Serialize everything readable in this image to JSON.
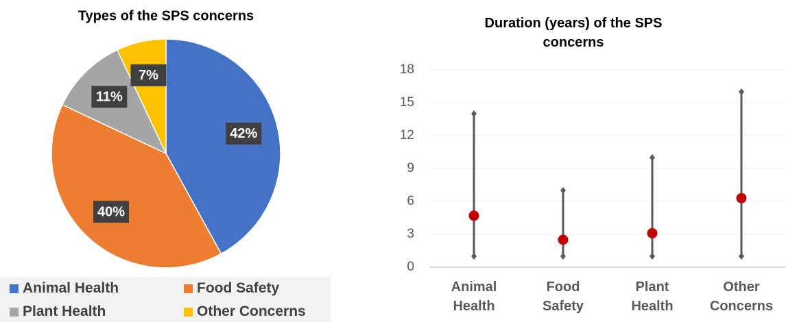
{
  "chart_data": [
    {
      "type": "pie",
      "title": "Types of the SPS concerns",
      "categories": [
        "Animal Health",
        "Food Safety",
        "Plant Health",
        "Other Concerns"
      ],
      "values": [
        42,
        40,
        11,
        7
      ],
      "value_labels": [
        "42%",
        "40%",
        "11%",
        "7%"
      ],
      "colors": [
        "#4472c4",
        "#ed7d31",
        "#a5a5a5",
        "#ffc000"
      ]
    },
    {
      "type": "range",
      "title": "Duration (years) of the SPS concerns",
      "categories": [
        "Animal Health",
        "Food Safety",
        "Plant Health",
        "Other Concerns"
      ],
      "min": [
        1,
        1,
        1,
        1
      ],
      "max": [
        14,
        7,
        10,
        16
      ],
      "mean": [
        4.7,
        2.5,
        3.1,
        6.3
      ],
      "line_color": "#595959",
      "mean_color": "#c00000",
      "ylim": [
        0,
        18
      ],
      "yticks": [
        0,
        3,
        6,
        9,
        12,
        15,
        18
      ],
      "grid": true
    }
  ]
}
